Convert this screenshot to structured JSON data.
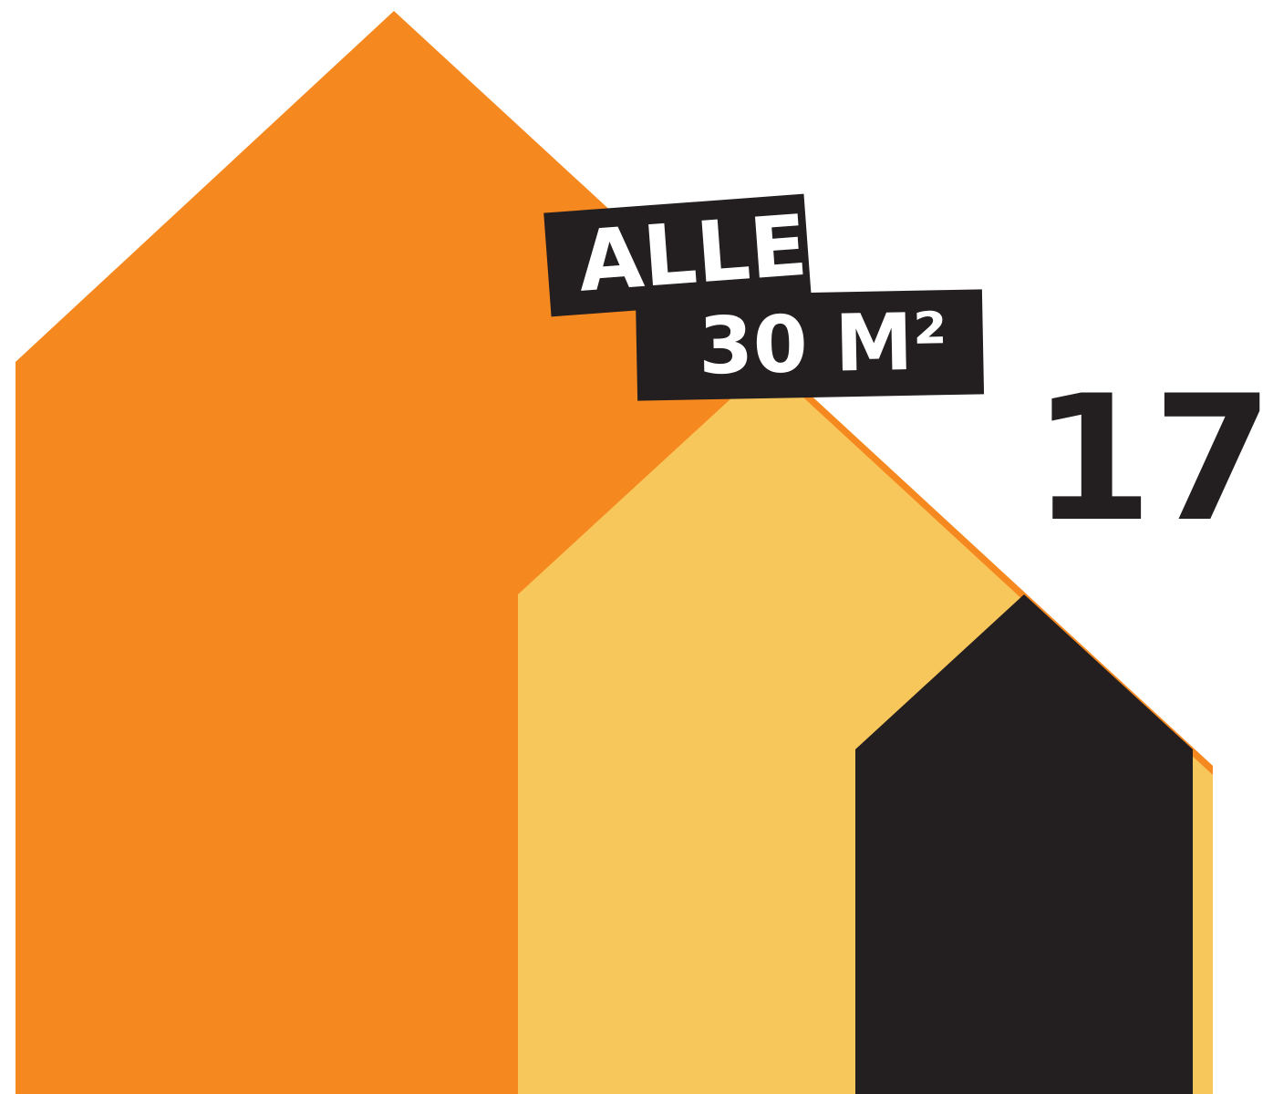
{
  "colors": {
    "orange": "#F5881F",
    "yellow": "#F8C75B",
    "dark": "#231F20",
    "label_text": "#FFFFFF",
    "background": "#FFFFFF"
  },
  "label": {
    "line1": "ALLE",
    "line2": "30 M²"
  },
  "big_number": "17"
}
